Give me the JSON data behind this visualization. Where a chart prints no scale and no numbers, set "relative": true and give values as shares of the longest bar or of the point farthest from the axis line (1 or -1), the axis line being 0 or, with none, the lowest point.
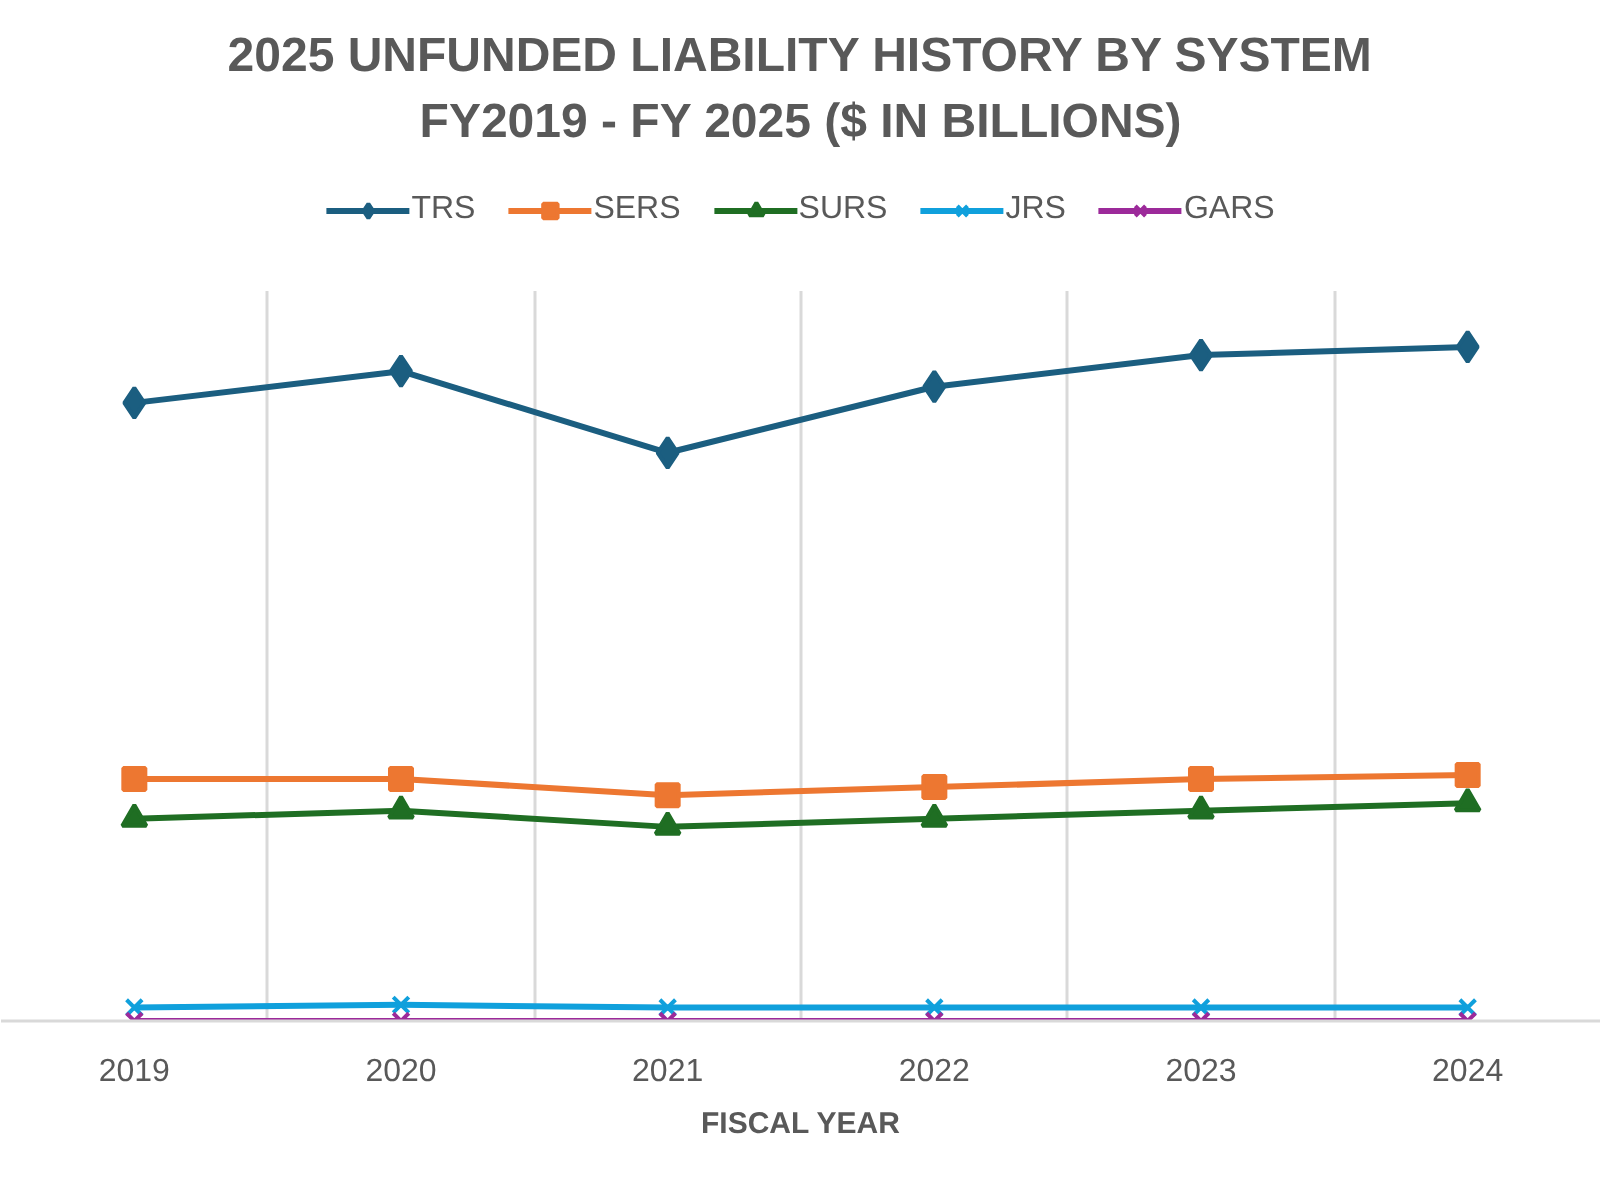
{
  "chart_data": {
    "type": "line",
    "title": "2025 UNFUNDED LIABILITY HISTORY BY SYSTEM",
    "subtitle": "FY2019 - FY 2025 ($ IN BILLIONS)",
    "xlabel": "FISCAL YEAR",
    "categories": [
      "2019",
      "2020",
      "2021",
      "2022",
      "2023",
      "2024"
    ],
    "relative": true,
    "grid": "x",
    "legend": "top",
    "line_style": "solid",
    "series": [
      {
        "name": "TRS",
        "color": "#1b5e80",
        "marker": "diamond",
        "values": [
          0.917,
          0.964,
          0.843,
          0.941,
          0.988,
          1
        ]
      },
      {
        "name": "SERS",
        "color": "#ed7731",
        "marker": "square",
        "values": [
          0.359,
          0.359,
          0.335,
          0.347,
          0.359,
          0.365
        ]
      },
      {
        "name": "SURS",
        "color": "#1f6e23",
        "marker": "triangle",
        "values": [
          0.3,
          0.312,
          0.288,
          0.3,
          0.312,
          0.323
        ]
      },
      {
        "name": "JRS",
        "color": "#10a0dc",
        "marker": "cross",
        "values": [
          0.02,
          0.024,
          0.02,
          0.02,
          0.02,
          0.02
        ]
      },
      {
        "name": "GARS",
        "color": "#9c2a9a",
        "marker": "cross",
        "values": [
          0,
          0,
          0,
          0,
          0,
          0
        ]
      }
    ]
  }
}
